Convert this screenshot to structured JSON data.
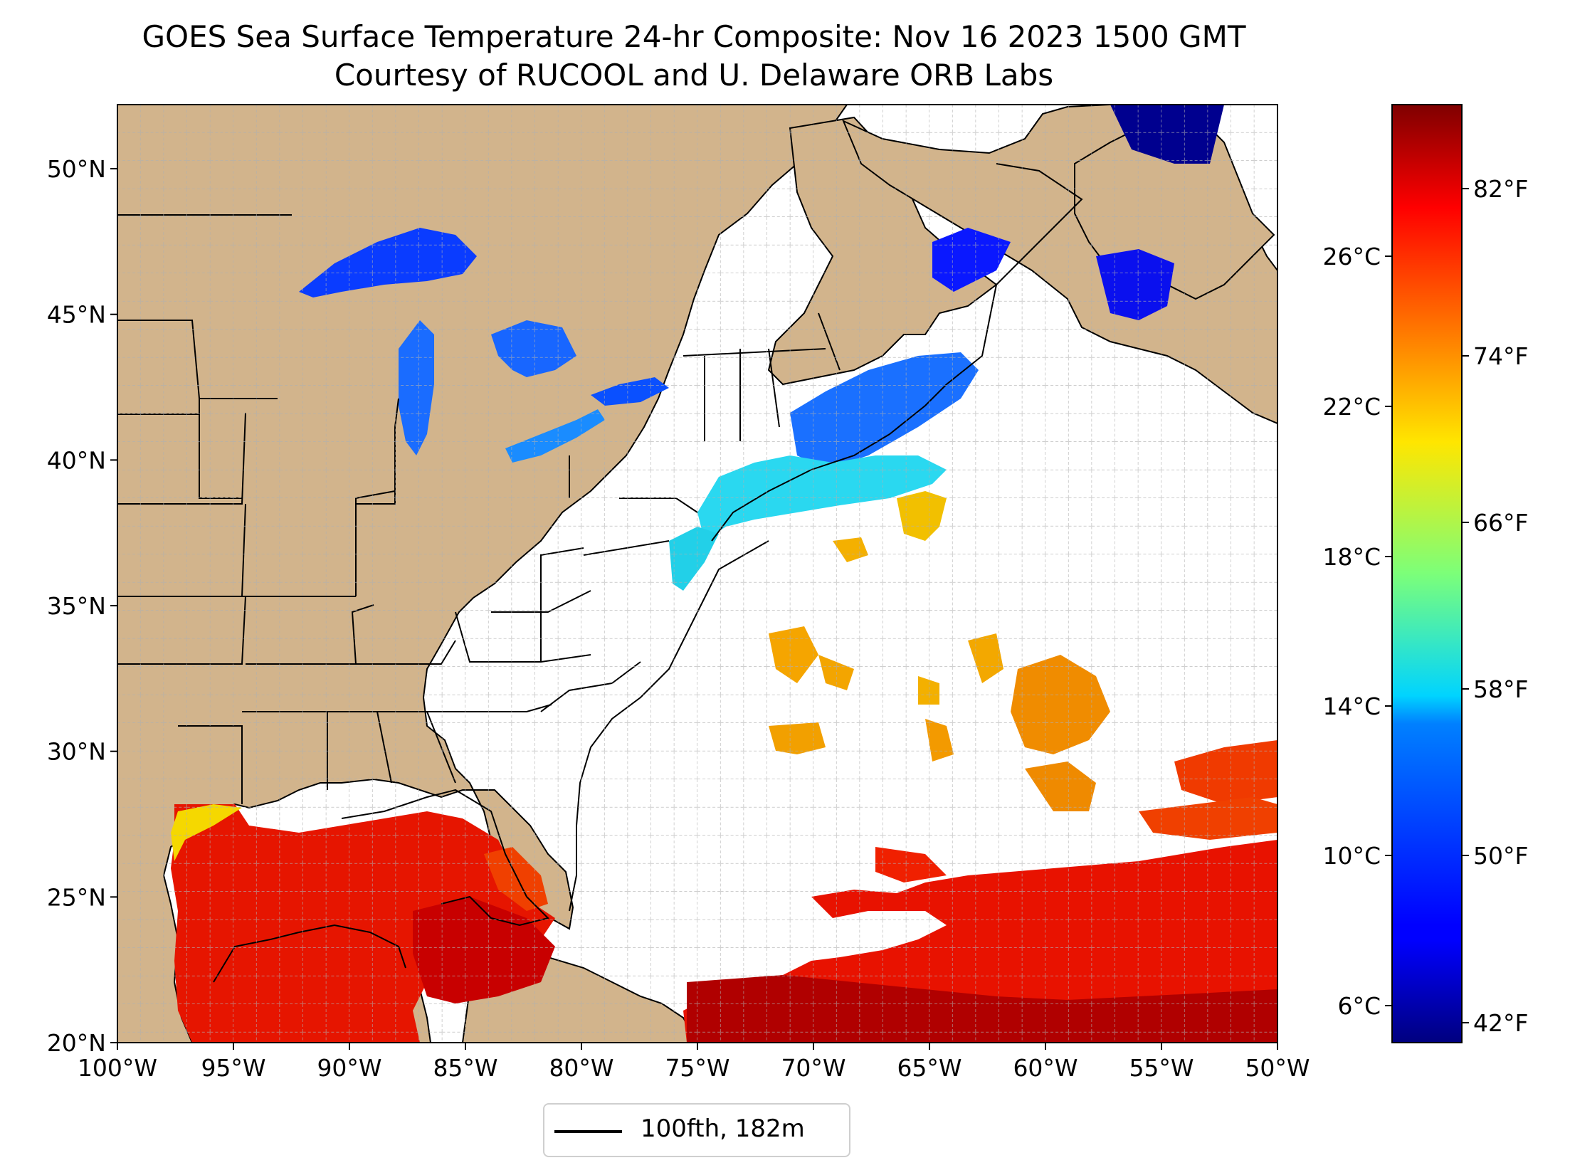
{
  "title": {
    "line1": "GOES Sea Surface Temperature 24-hr Composite: Nov 16 2023 1500 GMT",
    "line2": "Courtesy of RUCOOL and U. Delaware ORB Labs"
  },
  "map": {
    "lon_range": [
      -100,
      -50
    ],
    "lat_range": [
      20,
      52.2
    ],
    "lon_ticks": [
      "100°W",
      "95°W",
      "90°W",
      "85°W",
      "80°W",
      "75°W",
      "70°W",
      "65°W",
      "60°W",
      "55°W",
      "50°W"
    ],
    "lat_ticks": [
      "20°N",
      "25°N",
      "30°N",
      "35°N",
      "40°N",
      "45°N",
      "50°N"
    ],
    "land_color": "#d2b48c",
    "grid": true
  },
  "colorbar": {
    "colormap": "jet",
    "celsius_ticks": [
      "6°C",
      "10°C",
      "14°C",
      "18°C",
      "22°C",
      "26°C"
    ],
    "fahrenheit_ticks": [
      "42°F",
      "50°F",
      "58°F",
      "66°F",
      "74°F",
      "82°F"
    ]
  },
  "legend": {
    "label": "100fth, 182m"
  }
}
